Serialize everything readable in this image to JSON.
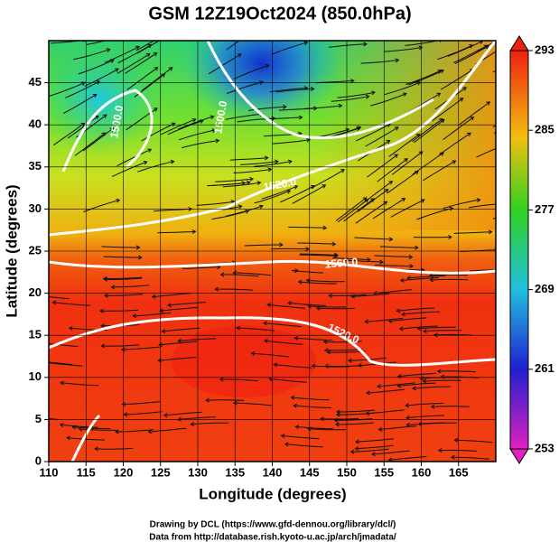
{
  "title": "GSM 12Z19Oct2024 (850.0hPa)",
  "x_axis": {
    "label": "Longitude (degrees)",
    "lim": [
      110,
      170
    ],
    "ticks": [
      110,
      115,
      120,
      125,
      130,
      135,
      140,
      145,
      150,
      155,
      160,
      165
    ]
  },
  "y_axis": {
    "label": "Latitude  (degrees)",
    "lim": [
      0,
      50
    ],
    "ticks": [
      0,
      5,
      10,
      15,
      20,
      25,
      30,
      35,
      40,
      45
    ]
  },
  "colorbar": {
    "lim": [
      253,
      293
    ],
    "ticks": [
      253,
      261,
      269,
      277,
      285,
      293
    ]
  },
  "contour_labels": [
    "1500.0",
    "1500.0",
    "1520.0",
    "1560.0",
    "1520.0"
  ],
  "credits": [
    "Drawing by DCL (https://www.gfd-dennou.org/library/dcl/)",
    "Data from http://database.rish.kyoto-u.ac.jp/arch/jmadata/"
  ]
}
